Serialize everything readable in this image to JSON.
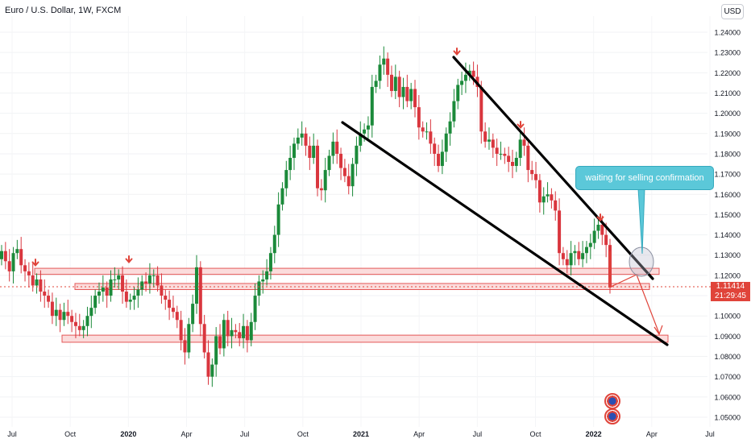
{
  "header": {
    "title": "Euro / U.S. Dollar, 1W, FXCM",
    "currency": "USD"
  },
  "price": {
    "last": "1.11414",
    "countdown": "21:29:45"
  },
  "annotation": {
    "text": "waiting for selling confirmation"
  },
  "colors": {
    "up": "#26a69a",
    "down": "#ef5350",
    "up_candle": "#1b8a3a",
    "down_candle": "#d9363e",
    "trendline": "#000000",
    "zone_fill": "#fbdcdc",
    "zone_border": "#e45757",
    "callout": "#5bc8d9",
    "arrow": "#e0443a",
    "price_tag": "#e0443a"
  },
  "chart_data": {
    "type": "candlestick",
    "y_axis_ticks": [
      "1.24000",
      "1.23000",
      "1.22000",
      "1.21000",
      "1.20000",
      "1.19000",
      "1.18000",
      "1.17000",
      "1.16000",
      "1.15000",
      "1.14000",
      "1.13000",
      "1.12000",
      "1.11000",
      "1.10000",
      "1.09000",
      "1.08000",
      "1.07000",
      "1.06000",
      "1.05000"
    ],
    "y_tick_values": [
      1.24,
      1.23,
      1.22,
      1.21,
      1.2,
      1.19,
      1.18,
      1.17,
      1.16,
      1.15,
      1.14,
      1.13,
      1.12,
      1.11,
      1.1,
      1.09,
      1.08,
      1.07,
      1.06,
      1.05
    ],
    "ylim": [
      1.045,
      1.245
    ],
    "x_axis_ticks": [
      "Jul",
      "Oct",
      "2020",
      "Apr",
      "Jul",
      "Oct",
      "2021",
      "Apr",
      "Jul",
      "Oct",
      "2022",
      "Apr",
      "Jul"
    ],
    "x_bold_ticks": [
      "2020",
      "2021",
      "2022"
    ],
    "x_range": [
      "2019-07",
      "2022-07"
    ],
    "candles_close": [
      1.132,
      1.127,
      1.122,
      1.131,
      1.133,
      1.125,
      1.122,
      1.12,
      1.115,
      1.118,
      1.112,
      1.11,
      1.107,
      1.1,
      1.103,
      1.098,
      1.102,
      1.1,
      1.097,
      1.095,
      1.093,
      1.095,
      1.1,
      1.104,
      1.11,
      1.112,
      1.114,
      1.11,
      1.118,
      1.118,
      1.12,
      1.112,
      1.107,
      1.108,
      1.11,
      1.113,
      1.117,
      1.116,
      1.12,
      1.12,
      1.115,
      1.11,
      1.108,
      1.104,
      1.102,
      1.098,
      1.088,
      1.082,
      1.096,
      1.106,
      1.124,
      1.096,
      1.082,
      1.07,
      1.076,
      1.09,
      1.084,
      1.098,
      1.09,
      1.093,
      1.092,
      1.089,
      1.095,
      1.088,
      1.097,
      1.11,
      1.117,
      1.118,
      1.122,
      1.131,
      1.14,
      1.155,
      1.163,
      1.172,
      1.178,
      1.185,
      1.188,
      1.19,
      1.184,
      1.178,
      1.184,
      1.163,
      1.162,
      1.172,
      1.179,
      1.186,
      1.18,
      1.173,
      1.169,
      1.164,
      1.175,
      1.184,
      1.19,
      1.192,
      1.194,
      1.213,
      1.216,
      1.224,
      1.227,
      1.219,
      1.211,
      1.218,
      1.208,
      1.213,
      1.206,
      1.212,
      1.203,
      1.193,
      1.191,
      1.191,
      1.185,
      1.18,
      1.174,
      1.181,
      1.19,
      1.196,
      1.206,
      1.214,
      1.216,
      1.219,
      1.221,
      1.218,
      1.213,
      1.191,
      1.186,
      1.187,
      1.183,
      1.18,
      1.18,
      1.179,
      1.176,
      1.174,
      1.178,
      1.187,
      1.184,
      1.172,
      1.17,
      1.167,
      1.156,
      1.159,
      1.16,
      1.157,
      1.152,
      1.131,
      1.128,
      1.125,
      1.131,
      1.132,
      1.128,
      1.131,
      1.134,
      1.136,
      1.142,
      1.145,
      1.14,
      1.135,
      1.114
    ],
    "zones": [
      {
        "from": 1.1205,
        "to": 1.1235,
        "label": ""
      },
      {
        "from": 1.113,
        "to": 1.116,
        "label": ""
      },
      {
        "from": 1.087,
        "to": 1.0905,
        "label": ""
      }
    ],
    "trendlines": [
      {
        "from": [
          "2021-05",
          1.2265
        ],
        "to": [
          "2022-03",
          1.1185
        ]
      },
      {
        "from": [
          "2020-12",
          1.1955
        ],
        "to": [
          "2022-03",
          1.086
        ]
      }
    ]
  }
}
